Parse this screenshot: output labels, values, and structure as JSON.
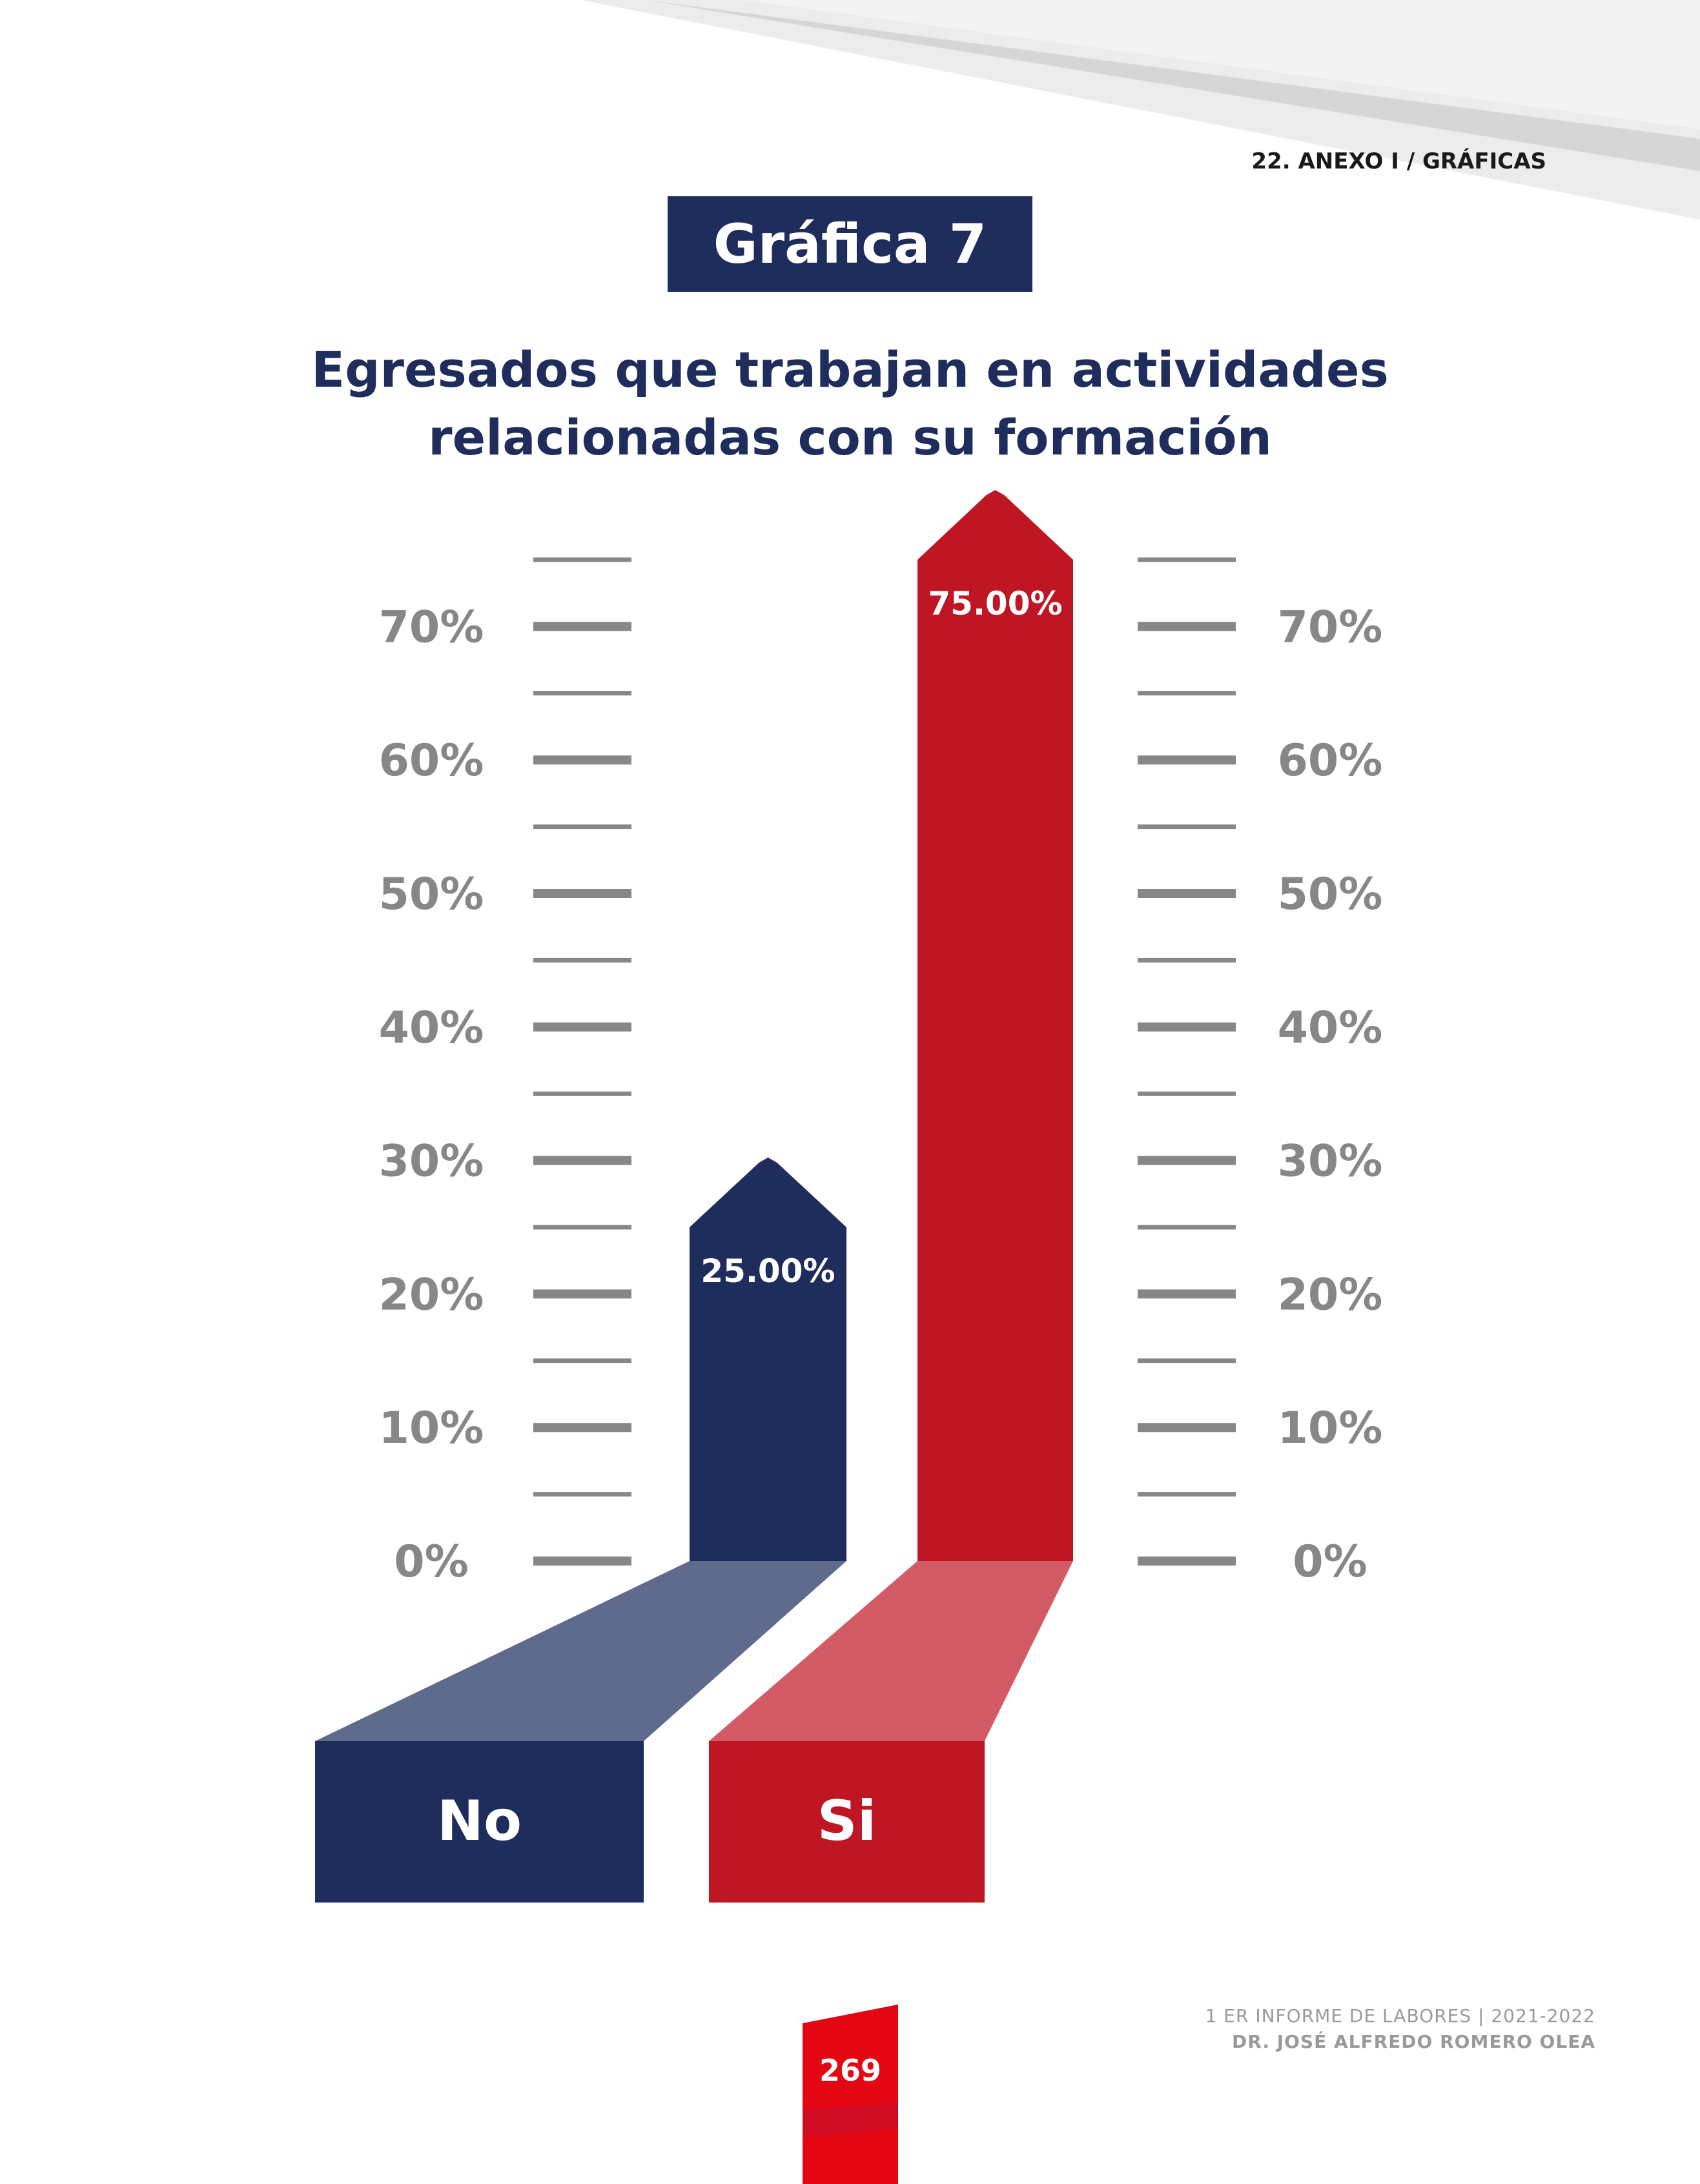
{
  "header": {
    "section_label": "22.  ANEXO I / GRÁFICAS"
  },
  "badge": {
    "label": "Gráfica 7"
  },
  "chart_data": {
    "type": "bar",
    "title_lines": [
      "Egresados que trabajan en actividades",
      "relacionadas con su formación"
    ],
    "categories": [
      "No",
      "Si"
    ],
    "values": [
      25.0,
      75.0
    ],
    "data_labels": [
      "25.00%",
      "75.00%"
    ],
    "colors": [
      "#1f2d5c",
      "#be1622"
    ],
    "ylim": [
      0,
      75
    ],
    "y_ticks": [
      "0%",
      "10%",
      "20%",
      "30%",
      "40%",
      "50%",
      "60%",
      "70%"
    ],
    "y_tick_values": [
      0,
      10,
      20,
      30,
      40,
      50,
      60,
      70
    ],
    "axis_side": "both",
    "tick_color": "#878787"
  },
  "footer": {
    "page_number": "269",
    "report_line": "1 ER INFORME DE LABORES | 2021-2022",
    "author_line": "DR. JOSÉ ALFREDO ROMERO OLEA",
    "accent_color": "#e30613"
  }
}
